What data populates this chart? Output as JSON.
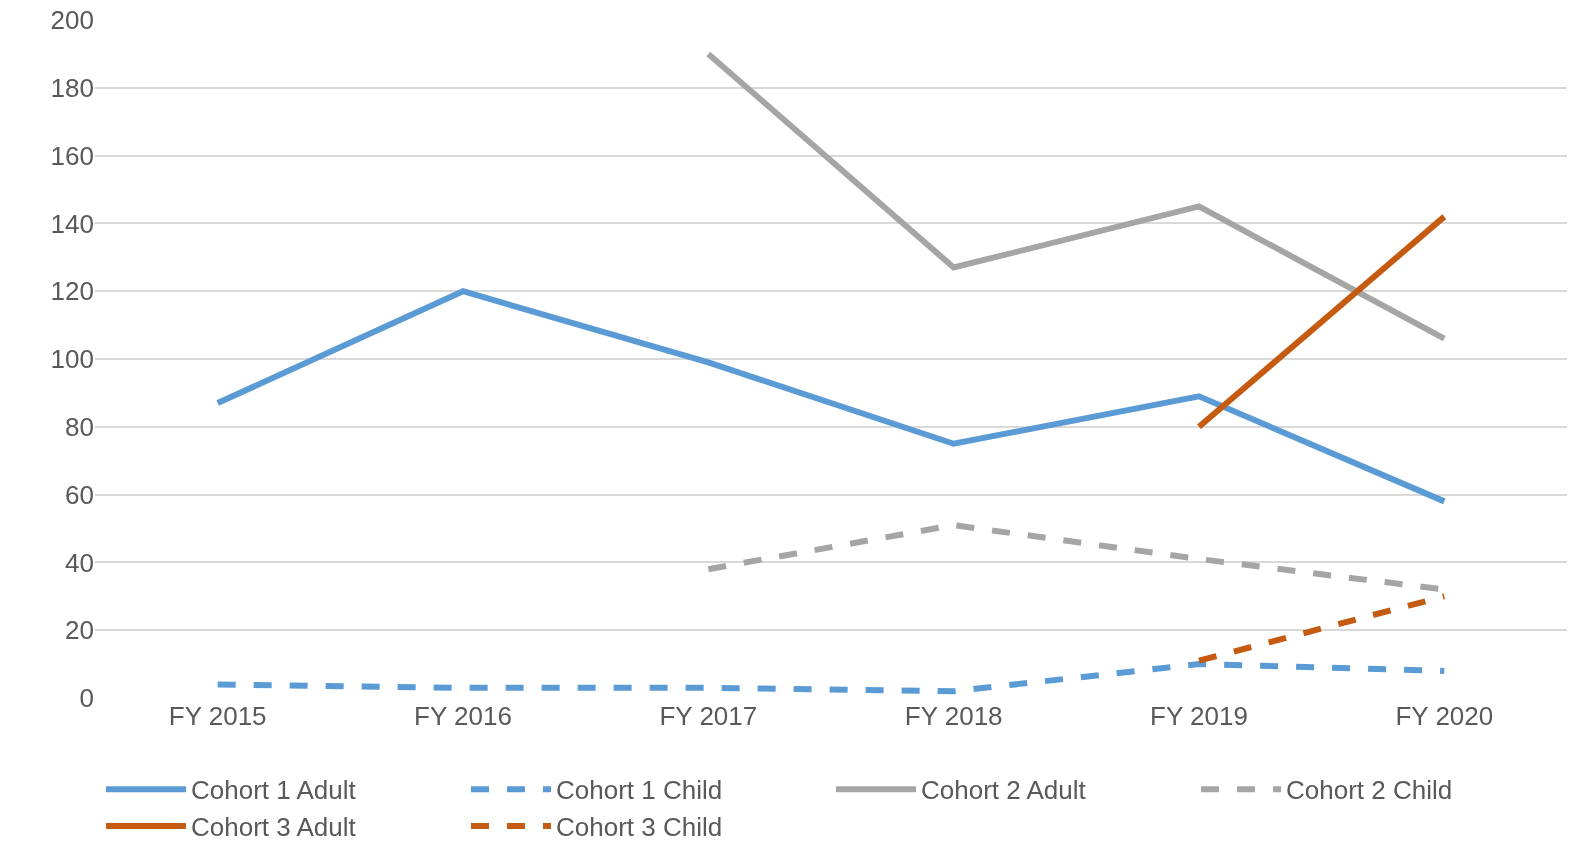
{
  "chart_data": {
    "type": "line",
    "categories": [
      "FY 2015",
      "FY 2016",
      "FY 2017",
      "FY 2018",
      "FY 2019",
      "FY 2020"
    ],
    "ylim": [
      0,
      200
    ],
    "yticks": [
      0,
      20,
      40,
      60,
      80,
      100,
      120,
      140,
      160,
      180,
      200
    ],
    "grid": "y",
    "legend": "bottom",
    "marker": "none",
    "series": [
      {
        "name": "Cohort 1 Adult",
        "color": "#5b9bd5",
        "line_style": "solid",
        "values": [
          87,
          120,
          99,
          75,
          89,
          58
        ]
      },
      {
        "name": "Cohort 1 Child",
        "color": "#5b9bd5",
        "line_style": "dashed",
        "values": [
          4,
          3,
          3,
          2,
          10,
          8
        ]
      },
      {
        "name": "Cohort 2 Adult",
        "color": "#a5a5a5",
        "line_style": "solid",
        "values": [
          null,
          null,
          190,
          127,
          145,
          106
        ]
      },
      {
        "name": "Cohort 2 Child",
        "color": "#a5a5a5",
        "line_style": "dashed",
        "values": [
          null,
          null,
          38,
          51,
          41,
          32
        ]
      },
      {
        "name": "Cohort 3 Adult",
        "color": "#c55a11",
        "line_style": "solid",
        "values": [
          null,
          null,
          null,
          null,
          80,
          142
        ]
      },
      {
        "name": "Cohort 3 Child",
        "color": "#c55a11",
        "line_style": "dashed",
        "values": [
          null,
          null,
          null,
          null,
          11,
          30
        ]
      }
    ]
  }
}
